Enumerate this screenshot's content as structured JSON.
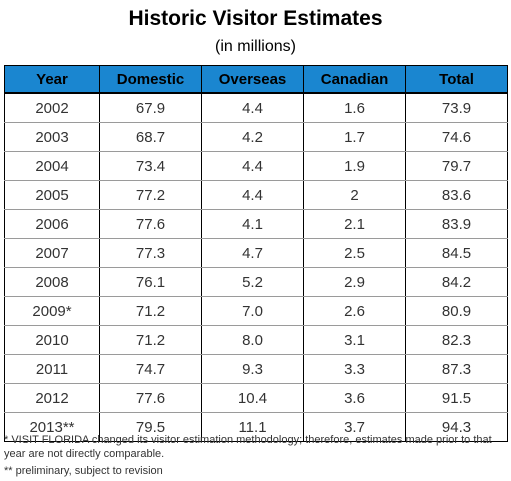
{
  "title": "Historic Visitor Estimates",
  "subtitle": "(in millions)",
  "headers": [
    "Year",
    "Domestic",
    "Overseas",
    "Canadian",
    "Total"
  ],
  "chart_data": {
    "type": "table",
    "title": "Historic Visitor Estimates",
    "subtitle": "(in millions)",
    "columns": [
      "Year",
      "Domestic",
      "Overseas",
      "Canadian",
      "Total"
    ],
    "rows": [
      [
        "2002",
        "67.9",
        "4.4",
        "1.6",
        "73.9"
      ],
      [
        "2003",
        "68.7",
        "4.2",
        "1.7",
        "74.6"
      ],
      [
        "2004",
        "73.4",
        "4.4",
        "1.9",
        "79.7"
      ],
      [
        "2005",
        "77.2",
        "4.4",
        "2",
        "83.6"
      ],
      [
        "2006",
        "77.6",
        "4.1",
        "2.1",
        "83.9"
      ],
      [
        "2007",
        "77.3",
        "4.7",
        "2.5",
        "84.5"
      ],
      [
        "2008",
        "76.1",
        "5.2",
        "2.9",
        "84.2"
      ],
      [
        "2009*",
        "71.2",
        "7.0",
        "2.6",
        "80.9"
      ],
      [
        "2010",
        "71.2",
        "8.0",
        "3.1",
        "82.3"
      ],
      [
        "2011",
        "74.7",
        "9.3",
        "3.3",
        "87.3"
      ],
      [
        "2012",
        "77.6",
        "10.4",
        "3.6",
        "91.5"
      ],
      [
        "2013**",
        "79.5",
        "11.1",
        "3.7",
        "94.3"
      ]
    ]
  },
  "footnotes": [
    "* VISIT FLORIDA changed its visitor estimation methodology; therefore, estimates made prior to that year are not directly comparable.",
    "** preliminary, subject to revision"
  ],
  "colors": {
    "header_bg": "#1a86d0"
  }
}
